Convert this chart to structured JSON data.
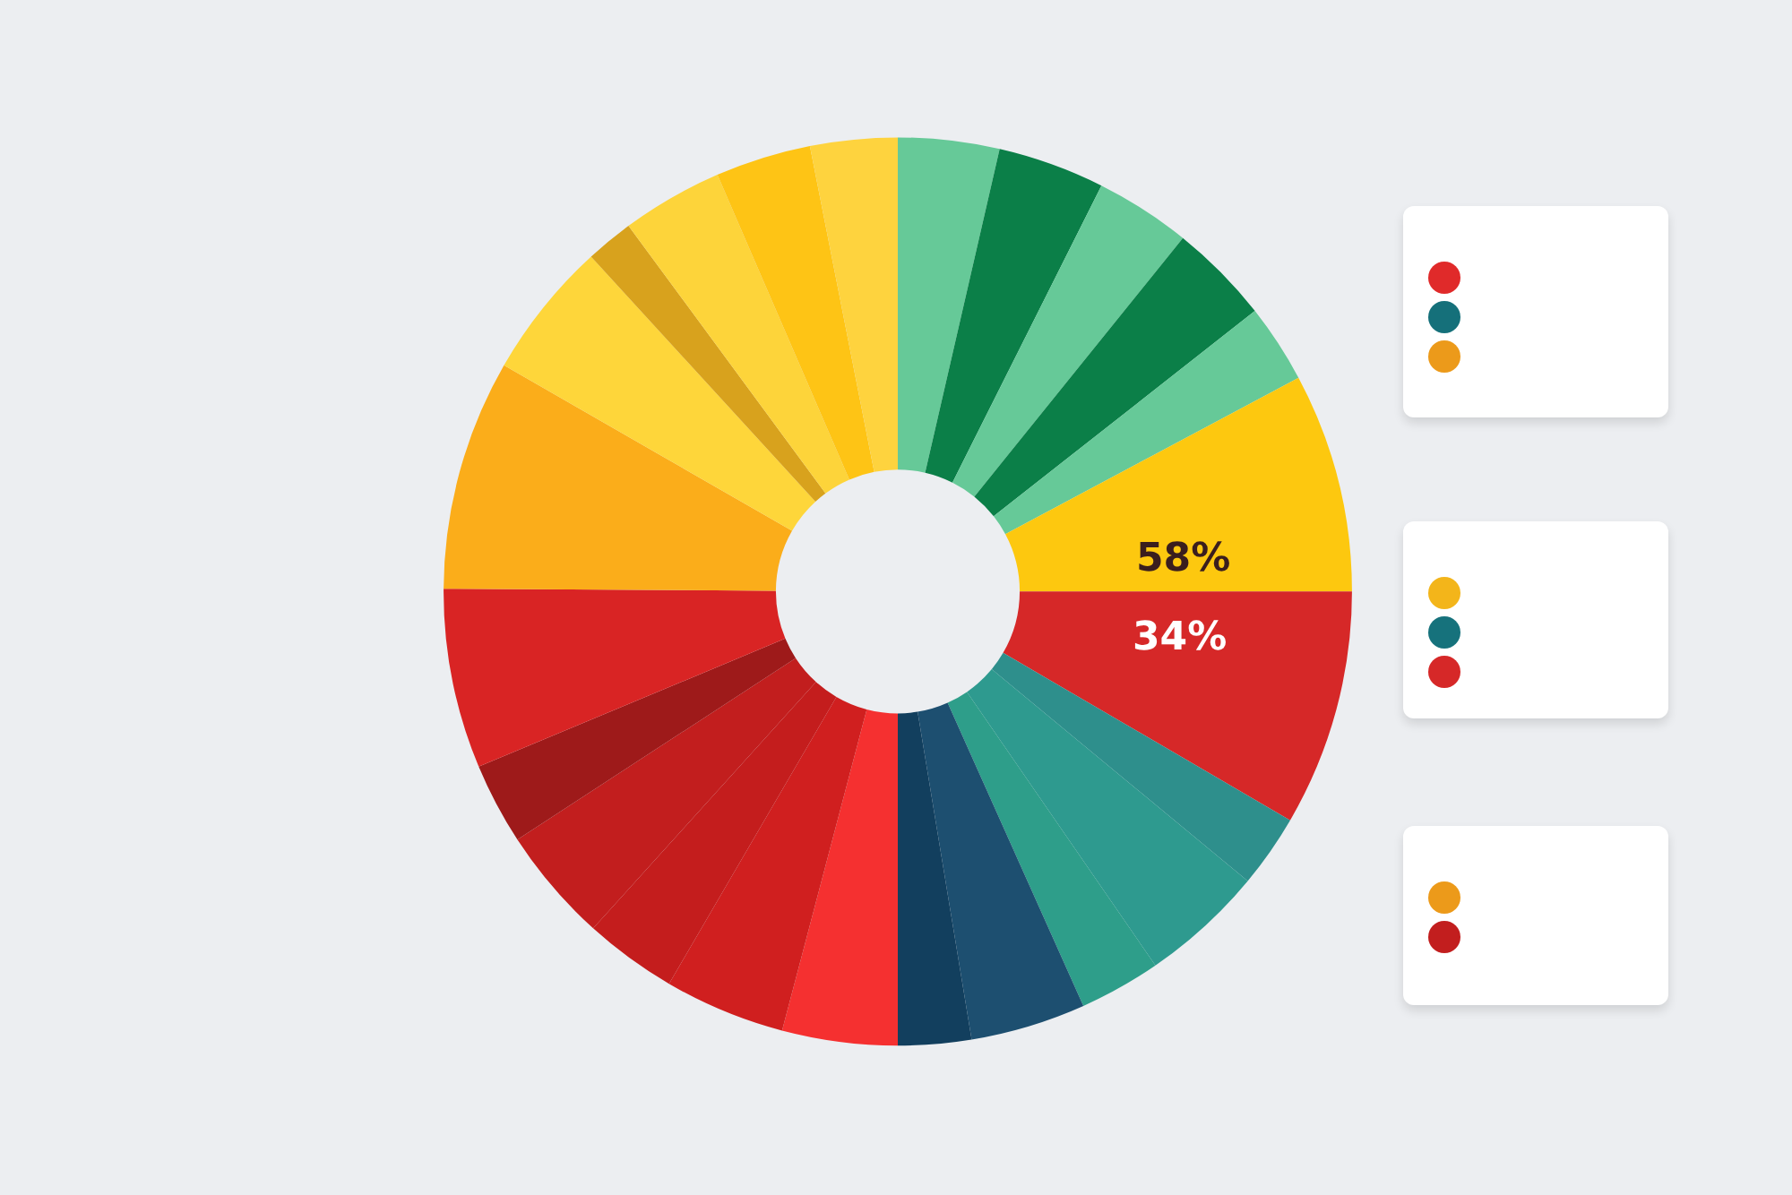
{
  "chart_data": {
    "type": "donut",
    "categories": [
      null,
      null,
      null,
      null,
      null,
      null,
      null,
      null,
      null,
      null,
      null,
      null,
      null,
      null,
      null,
      null,
      null,
      null,
      null,
      null,
      null,
      null,
      null,
      null
    ],
    "values": [
      3.6,
      3.8,
      3.4,
      3.6,
      2.8,
      7.8,
      8.4,
      2.6,
      4.4,
      2.9,
      4.1,
      2.6,
      4.1,
      4.3,
      3.3,
      4.1,
      2.9,
      6.4,
      8.2,
      4.9,
      1.7,
      3.6,
      3.4,
      3.1
    ],
    "colors": [
      "#66c998",
      "#0b7f48",
      "#66c998",
      "#0b7f48",
      "#66c998",
      "#fdc80f",
      "#d62828",
      "#2e8f8c",
      "#2e9a8f",
      "#2e9e8a",
      "#1d4f70",
      "#123f5e",
      "#f53030",
      "#d01f1f",
      "#c41d1d",
      "#c21e1e",
      "#9e1a1a",
      "#d92424",
      "#fbad1a",
      "#fed63a",
      "#d8a21d",
      "#fdd43a",
      "#fec415",
      "#fed33e"
    ],
    "annotations": [
      "58%",
      "34%"
    ]
  }
}
